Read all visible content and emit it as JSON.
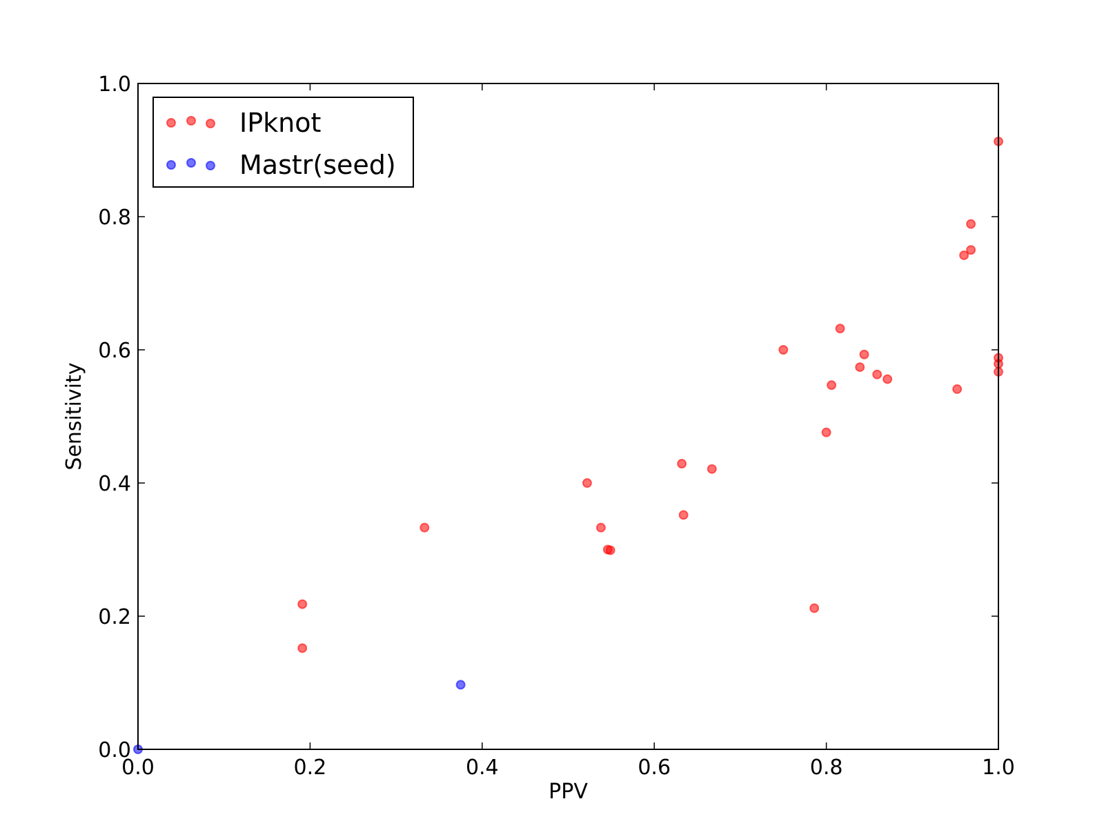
{
  "chart_data": {
    "type": "scatter",
    "xlabel": "PPV",
    "ylabel": "Sensitivity",
    "xlim": [
      0.0,
      1.0
    ],
    "ylim": [
      0.0,
      1.0
    ],
    "x_ticks": [
      "0.0",
      "0.2",
      "0.4",
      "0.6",
      "0.8",
      "1.0"
    ],
    "y_ticks": [
      "0.0",
      "0.2",
      "0.4",
      "0.6",
      "0.8",
      "1.0"
    ],
    "grid": false,
    "legend_position": "top-left",
    "series": [
      {
        "name": "IPknot",
        "color": "#ff0000",
        "points": [
          [
            0.191,
            0.218
          ],
          [
            0.191,
            0.152
          ],
          [
            0.333,
            0.333
          ],
          [
            0.522,
            0.4
          ],
          [
            0.538,
            0.333
          ],
          [
            0.546,
            0.3
          ],
          [
            0.549,
            0.299
          ],
          [
            0.632,
            0.429
          ],
          [
            0.634,
            0.352
          ],
          [
            0.667,
            0.421
          ],
          [
            0.75,
            0.6
          ],
          [
            0.786,
            0.212
          ],
          [
            0.8,
            0.476
          ],
          [
            0.806,
            0.547
          ],
          [
            0.816,
            0.632
          ],
          [
            0.839,
            0.574
          ],
          [
            0.844,
            0.593
          ],
          [
            0.859,
            0.563
          ],
          [
            0.871,
            0.556
          ],
          [
            0.952,
            0.541
          ],
          [
            0.96,
            0.742
          ],
          [
            0.968,
            0.75
          ],
          [
            0.968,
            0.789
          ],
          [
            1.0,
            0.913
          ],
          [
            1.0,
            0.588
          ],
          [
            1.0,
            0.579
          ],
          [
            1.0,
            0.567
          ]
        ]
      },
      {
        "name": "Mastr(seed)",
        "color": "#0000ff",
        "points": [
          [
            0.375,
            0.097
          ],
          [
            0.0,
            0.0
          ]
        ]
      }
    ]
  }
}
